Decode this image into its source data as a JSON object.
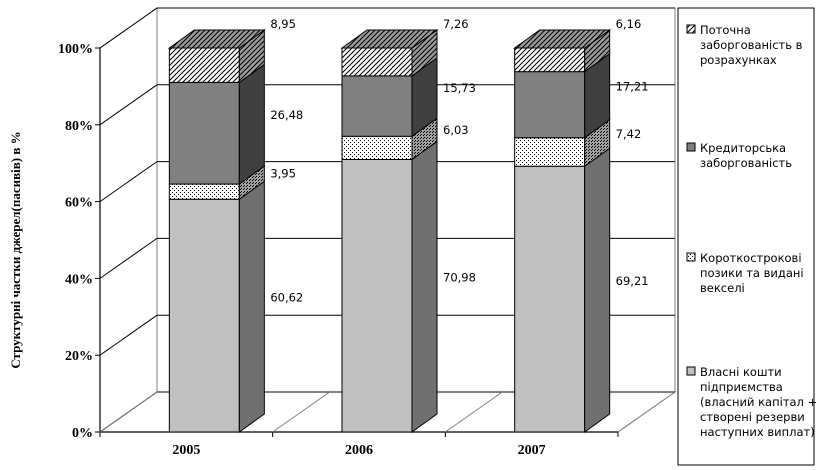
{
  "chart_data": {
    "type": "bar",
    "stacked": true,
    "three_d": true,
    "categories": [
      "2005",
      "2006",
      "2007"
    ],
    "series": [
      {
        "name": "Власні кошти підприємства (власний капітал + створені резерви наступних виплат)",
        "values": [
          60.62,
          70.98,
          69.21
        ],
        "color": "#c0c0c0",
        "pattern": "solid"
      },
      {
        "name": "Короткострокові позики та видані векселі",
        "values": [
          3.95,
          6.03,
          7.42
        ],
        "color": "#ffffff",
        "pattern": "dotted"
      },
      {
        "name": "Кредиторська заборгованість",
        "values": [
          26.48,
          15.73,
          17.21
        ],
        "color": "#808080",
        "pattern": "solid"
      },
      {
        "name": "Поточна заборгованість в розрахунках",
        "values": [
          8.95,
          7.26,
          6.16
        ],
        "color": "#ffffff",
        "pattern": "hatched"
      }
    ],
    "ylabel": "Структурні частки джерел(пасивів) в %",
    "ylim": [
      0,
      100
    ],
    "yticks": [
      "0%",
      "20%",
      "40%",
      "60%",
      "80%",
      "100%"
    ],
    "grid": true,
    "legend_position": "right",
    "legend": [
      {
        "lines": [
          "Поточна",
          "заборгованість в",
          "розрахунках"
        ]
      },
      {
        "lines": [
          "Кредиторська",
          "заборгованість"
        ]
      },
      {
        "lines": [
          "Короткострокові",
          "позики та видані",
          "векселі"
        ]
      },
      {
        "lines": [
          "Власні кошти",
          "підприємства",
          "(власний капітал +",
          "створені резерви",
          "наступних виплат)"
        ]
      }
    ]
  }
}
